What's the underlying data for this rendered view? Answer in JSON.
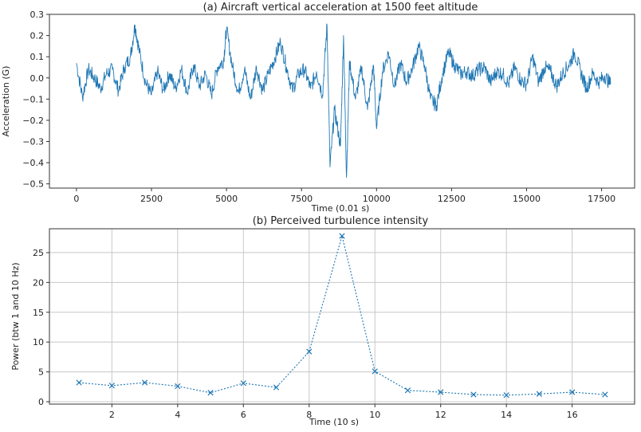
{
  "chart_data": [
    {
      "type": "line",
      "title": "(a) Aircraft vertical acceleration at 1500 feet altitude",
      "xlabel": "Time (0.01 s)",
      "ylabel": "Acceleration (G)",
      "xlim": [
        -900,
        18600
      ],
      "ylim": [
        -0.52,
        0.3
      ],
      "xticks": [
        0,
        2500,
        5000,
        7500,
        10000,
        12500,
        15000,
        17500
      ],
      "yticks": [
        0.3,
        0.2,
        0.1,
        0.0,
        -0.1,
        -0.2,
        -0.3,
        -0.4,
        -0.5
      ],
      "ytick_labels": [
        "0.3",
        "0.2",
        "0.1",
        "0.0",
        "−0.1",
        "−0.2",
        "−0.3",
        "−0.4",
        "−0.5"
      ],
      "grid": false,
      "series_color": "#1f77b4",
      "series": [
        {
          "name": "",
          "x": [
            0,
            200,
            400,
            600,
            800,
            1000,
            1200,
            1400,
            1600,
            1800,
            1950,
            2100,
            2300,
            2500,
            2700,
            2900,
            3100,
            3300,
            3500,
            3700,
            3900,
            4100,
            4300,
            4500,
            4700,
            4900,
            5000,
            5200,
            5400,
            5600,
            5800,
            6000,
            6200,
            6400,
            6600,
            6800,
            7000,
            7200,
            7400,
            7600,
            7800,
            8000,
            8200,
            8350,
            8450,
            8600,
            8800,
            8900,
            9000,
            9100,
            9300,
            9500,
            9700,
            9900,
            10000,
            10200,
            10400,
            10600,
            10800,
            11000,
            11200,
            11400,
            11600,
            11800,
            12000,
            12200,
            12400,
            12600,
            12800,
            13000,
            13200,
            13400,
            13600,
            13800,
            14000,
            14200,
            14400,
            14600,
            14800,
            15000,
            15200,
            15400,
            15600,
            15800,
            16000,
            16200,
            16400,
            16600,
            16800,
            17000,
            17200,
            17400,
            17600,
            17800
          ],
          "y": [
            0.07,
            -0.09,
            0.04,
            0.0,
            -0.05,
            0.02,
            0.04,
            -0.06,
            0.05,
            0.1,
            0.25,
            0.12,
            -0.02,
            -0.08,
            0.03,
            -0.06,
            0.02,
            -0.05,
            0.04,
            -0.07,
            0.06,
            -0.04,
            0.02,
            -0.08,
            0.05,
            0.08,
            0.23,
            0.05,
            -0.07,
            0.04,
            -0.1,
            0.05,
            -0.06,
            0.02,
            0.09,
            0.17,
            0.05,
            -0.06,
            0.02,
            0.04,
            -0.05,
            0.03,
            -0.08,
            0.25,
            -0.42,
            -0.15,
            -0.32,
            0.2,
            -0.47,
            0.08,
            -0.1,
            0.05,
            -0.15,
            0.06,
            -0.24,
            0.03,
            0.12,
            -0.04,
            0.07,
            -0.02,
            0.05,
            0.15,
            0.06,
            -0.1,
            -0.13,
            0.02,
            0.12,
            0.06,
            0.02,
            0.03,
            0.01,
            0.04,
            0.05,
            -0.02,
            0.03,
            0.02,
            -0.03,
            0.05,
            -0.01,
            -0.03,
            0.1,
            -0.02,
            0.05,
            0.03,
            -0.04,
            0.02,
            0.06,
            0.12,
            0.03,
            -0.05,
            0.02,
            -0.02,
            0.01,
            -0.03
          ]
        }
      ]
    },
    {
      "type": "line",
      "title": "(b) Perceived turbulence intensity",
      "xlabel": "Time (10 s)",
      "ylabel": "Power (btw 1 and 10 Hz)",
      "xlim": [
        0.1,
        17.9
      ],
      "ylim": [
        -0.4,
        29
      ],
      "xticks": [
        2,
        4,
        6,
        8,
        10,
        12,
        14,
        16
      ],
      "yticks": [
        0,
        5,
        10,
        15,
        20,
        25
      ],
      "grid": true,
      "marker": "x",
      "linestyle": "dotted",
      "series_color": "#1f77b4",
      "series": [
        {
          "name": "",
          "x": [
            1,
            2,
            3,
            4,
            5,
            6,
            7,
            8,
            9,
            10,
            11,
            12,
            13,
            14,
            15,
            16,
            17
          ],
          "y": [
            3.2,
            2.7,
            3.2,
            2.6,
            1.5,
            3.1,
            2.4,
            8.4,
            27.8,
            5.1,
            1.9,
            1.6,
            1.2,
            1.1,
            1.3,
            1.6,
            1.2
          ]
        }
      ]
    }
  ]
}
